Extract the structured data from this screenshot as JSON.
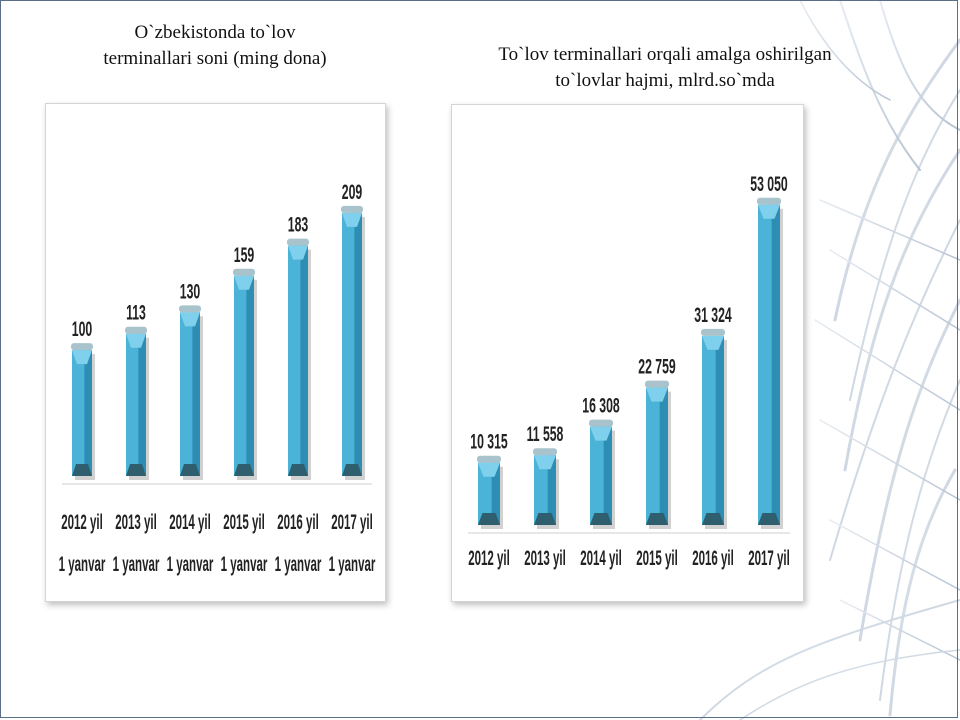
{
  "slide": {
    "colors": {
      "bar_front": "#4bb3d8",
      "bar_side": "#2d8db3",
      "bar_base": "#2f5f6e",
      "cap": "#a9c3cc"
    }
  },
  "chart_data": [
    {
      "type": "bar",
      "title": "O`zbekistonda to`lov terminallari soni (ming dona)",
      "title_lines": [
        "O`zbekistonda to`lov",
        "terminallari soni (ming dona)"
      ],
      "categories": [
        "2012 yil 1 yanvar",
        "2013 yil 1 yanvar",
        "2014 yil 1 yanvar",
        "2015 yil 1 yanvar",
        "2016 yil 1 yanvar",
        "2017 yil 1 yanvar"
      ],
      "category_lines": [
        [
          "2012 yil",
          "1 yanvar"
        ],
        [
          "2013 yil",
          "1 yanvar"
        ],
        [
          "2014 yil",
          "1 yanvar"
        ],
        [
          "2015 yil",
          "1 yanvar"
        ],
        [
          "2016 yil",
          "1 yanvar"
        ],
        [
          "2017 yil",
          "1 yanvar"
        ]
      ],
      "values": [
        100,
        113,
        130,
        159,
        183,
        209
      ],
      "value_labels": [
        "100",
        "113",
        "130",
        "159",
        "183",
        "209"
      ],
      "ylim": [
        0,
        220
      ],
      "grid": false,
      "legend": "none"
    },
    {
      "type": "bar",
      "title": "To`lov terminallari orqali amalga oshirilgan to`lovlar hajmi, mlrd.so`mda",
      "title_lines": [
        "To`lov terminallari orqali amalga oshirilgan",
        "to`lovlar hajmi, mlrd.so`mda"
      ],
      "categories": [
        "2012 yil",
        "2013 yil",
        "2014 yil",
        "2015 yil",
        "2016 yil",
        "2017 yil"
      ],
      "category_lines": [
        [
          "2012 yil"
        ],
        [
          "2013 yil"
        ],
        [
          "2014 yil"
        ],
        [
          "2015 yil"
        ],
        [
          "2016 yil"
        ],
        [
          "2017 yil"
        ]
      ],
      "values": [
        10315,
        11558,
        16308,
        22759,
        31324,
        53050
      ],
      "value_labels": [
        "10 315",
        "11 558",
        "16 308",
        "22 759",
        "31 324",
        "53 050"
      ],
      "ylim": [
        0,
        56000
      ],
      "grid": false,
      "legend": "none"
    }
  ]
}
